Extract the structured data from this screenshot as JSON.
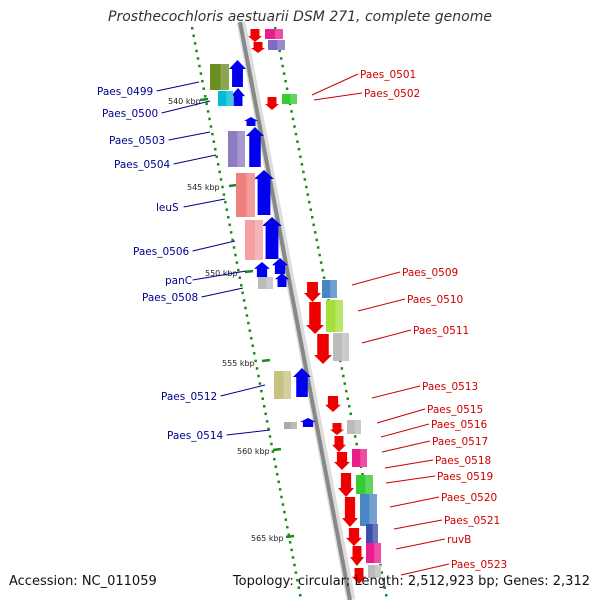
{
  "header": {
    "title": "Prosthecochloris aestuarii DSM 271, complete genome"
  },
  "footer": {
    "accession": "Accession: NC_011059",
    "summary": "Topology: circular; Length: 2,512,923 bp; Genes: 2,312"
  },
  "colors": {
    "forward_label": "#00008b",
    "reverse_label": "#cc0000",
    "backbone": "#888888",
    "tick": "#1a8a1a",
    "forward_arrow": "#0000ee",
    "reverse_arrow": "#ee0000"
  },
  "scale_labels": [
    "540 kbp",
    "545 kbp",
    "550 kbp",
    "555 kbp",
    "560 kbp",
    "565 kbp"
  ],
  "gene_labels_left": [
    "Paes_0499",
    "Paes_0500",
    "Paes_0503",
    "Paes_0504",
    "leuS",
    "Paes_0506",
    "panC",
    "Paes_0508",
    "Paes_0512",
    "Paes_0514"
  ],
  "gene_labels_right": [
    "Paes_0501",
    "Paes_0502",
    "Paes_0509",
    "Paes_0510",
    "Paes_0511",
    "Paes_0513",
    "Paes_0515",
    "Paes_0516",
    "Paes_0517",
    "Paes_0518",
    "Paes_0519",
    "Paes_0520",
    "Paes_0521",
    "ruvB",
    "Paes_0523"
  ]
}
